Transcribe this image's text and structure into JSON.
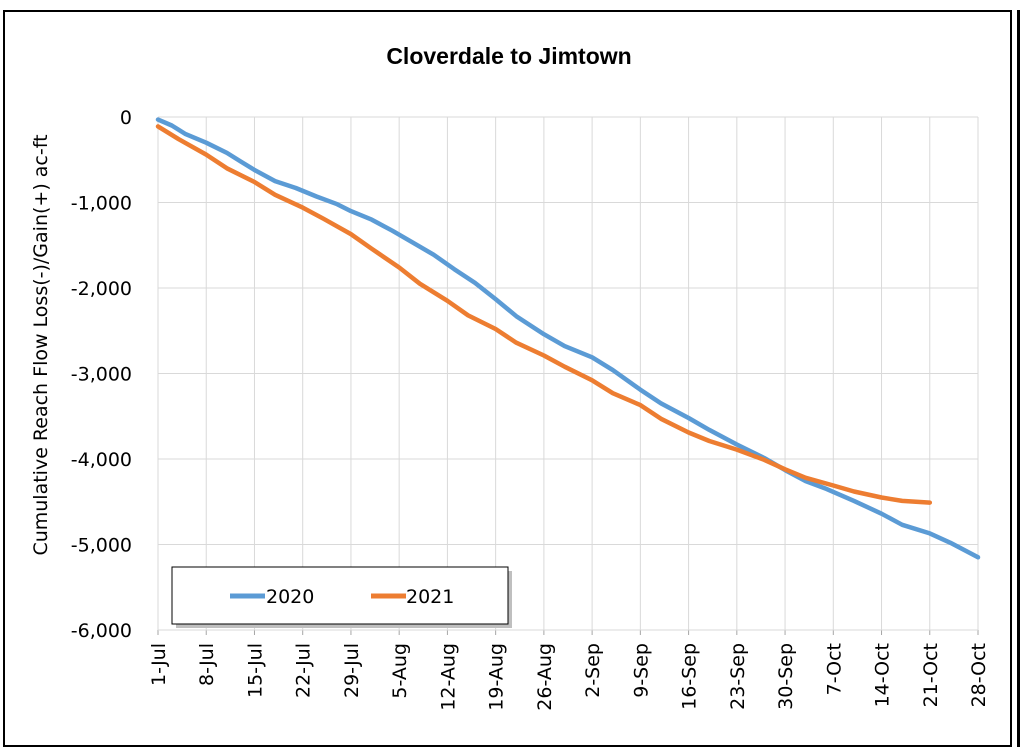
{
  "chart_data": {
    "type": "line",
    "title": "Cloverdale to Jimtown",
    "xlabel": "",
    "ylabel": "Cumulative Reach Flow Loss(-)/Gain(+) ac-ft",
    "x_tick_labels": [
      "1-Jul",
      "8-Jul",
      "15-Jul",
      "22-Jul",
      "29-Jul",
      "5-Aug",
      "12-Aug",
      "19-Aug",
      "26-Aug",
      "2-Sep",
      "9-Sep",
      "16-Sep",
      "23-Sep",
      "30-Sep",
      "7-Oct",
      "14-Oct",
      "21-Oct",
      "28-Oct"
    ],
    "y_tick_labels": [
      "0",
      "-1,000",
      "-2,000",
      "-3,000",
      "-4,000",
      "-5,000",
      "-6,000"
    ],
    "y_ticks": [
      0,
      -1000,
      -2000,
      -3000,
      -4000,
      -5000,
      -6000
    ],
    "ylim": [
      -6000,
      0
    ],
    "xlim": [
      "1-Jul",
      "28-Oct"
    ],
    "grid": true,
    "legend_position": "bottom-left",
    "series": [
      {
        "name": "2020",
        "color": "#5b9bd5",
        "points": [
          [
            "1-Jul",
            -30
          ],
          [
            "3-Jul",
            -100
          ],
          [
            "5-Jul",
            -200
          ],
          [
            "8-Jul",
            -300
          ],
          [
            "11-Jul",
            -420
          ],
          [
            "13-Jul",
            -520
          ],
          [
            "15-Jul",
            -620
          ],
          [
            "18-Jul",
            -750
          ],
          [
            "21-Jul",
            -830
          ],
          [
            "24-Jul",
            -930
          ],
          [
            "27-Jul",
            -1020
          ],
          [
            "29-Jul",
            -1100
          ],
          [
            "1-Aug",
            -1200
          ],
          [
            "4-Aug",
            -1330
          ],
          [
            "7-Aug",
            -1470
          ],
          [
            "10-Aug",
            -1610
          ],
          [
            "13-Aug",
            -1780
          ],
          [
            "16-Aug",
            -1940
          ],
          [
            "19-Aug",
            -2130
          ],
          [
            "22-Aug",
            -2330
          ],
          [
            "26-Aug",
            -2540
          ],
          [
            "29-Aug",
            -2680
          ],
          [
            "2-Sep",
            -2810
          ],
          [
            "5-Sep",
            -2960
          ],
          [
            "9-Sep",
            -3190
          ],
          [
            "12-Sep",
            -3350
          ],
          [
            "16-Sep",
            -3520
          ],
          [
            "19-Sep",
            -3660
          ],
          [
            "23-Sep",
            -3830
          ],
          [
            "27-Sep",
            -3990
          ],
          [
            "30-Sep",
            -4130
          ],
          [
            "3-Oct",
            -4260
          ],
          [
            "6-Oct",
            -4350
          ],
          [
            "10-Oct",
            -4490
          ],
          [
            "14-Oct",
            -4640
          ],
          [
            "17-Oct",
            -4770
          ],
          [
            "21-Oct",
            -4870
          ],
          [
            "24-Oct",
            -4980
          ],
          [
            "28-Oct",
            -5150
          ]
        ]
      },
      {
        "name": "2021",
        "color": "#ed7d31",
        "points": [
          [
            "1-Jul",
            -110
          ],
          [
            "4-Jul",
            -260
          ],
          [
            "8-Jul",
            -440
          ],
          [
            "11-Jul",
            -600
          ],
          [
            "15-Jul",
            -760
          ],
          [
            "18-Jul",
            -910
          ],
          [
            "22-Jul",
            -1060
          ],
          [
            "25-Jul",
            -1190
          ],
          [
            "29-Jul",
            -1370
          ],
          [
            "1-Aug",
            -1540
          ],
          [
            "5-Aug",
            -1760
          ],
          [
            "8-Aug",
            -1950
          ],
          [
            "12-Aug",
            -2150
          ],
          [
            "15-Aug",
            -2320
          ],
          [
            "19-Aug",
            -2480
          ],
          [
            "22-Aug",
            -2640
          ],
          [
            "26-Aug",
            -2790
          ],
          [
            "29-Aug",
            -2920
          ],
          [
            "2-Sep",
            -3080
          ],
          [
            "5-Sep",
            -3230
          ],
          [
            "9-Sep",
            -3370
          ],
          [
            "12-Sep",
            -3530
          ],
          [
            "16-Sep",
            -3690
          ],
          [
            "19-Sep",
            -3790
          ],
          [
            "23-Sep",
            -3890
          ],
          [
            "27-Sep",
            -4010
          ],
          [
            "30-Sep",
            -4120
          ],
          [
            "3-Oct",
            -4220
          ],
          [
            "7-Oct",
            -4310
          ],
          [
            "10-Oct",
            -4380
          ],
          [
            "14-Oct",
            -4450
          ],
          [
            "17-Oct",
            -4490
          ],
          [
            "21-Oct",
            -4510
          ]
        ]
      }
    ]
  }
}
